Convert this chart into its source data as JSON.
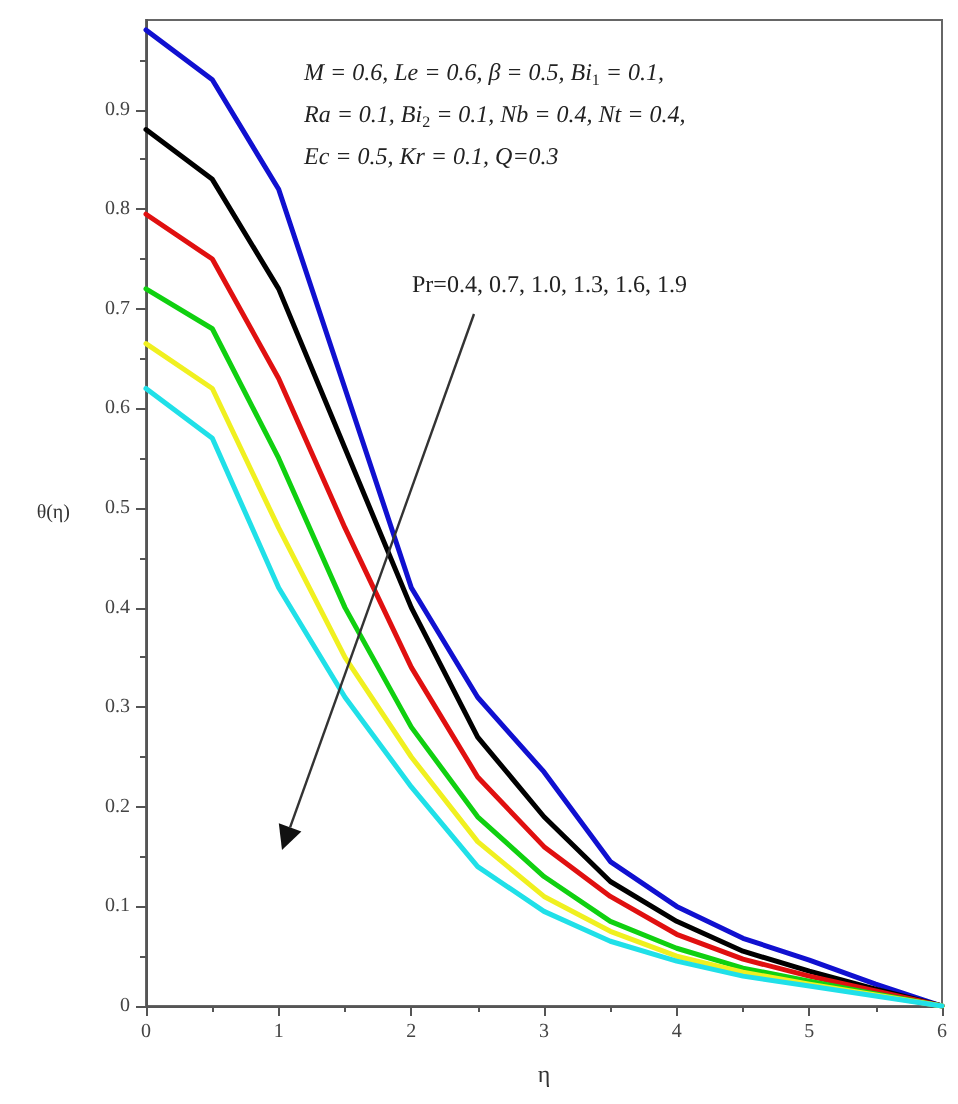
{
  "chart_data": {
    "type": "line",
    "xlabel": "η",
    "ylabel": "θ(η)",
    "x": [
      0,
      0.5,
      1,
      1.5,
      2,
      2.5,
      3,
      3.5,
      4,
      4.5,
      5,
      5.5,
      6
    ],
    "series": [
      {
        "color": "#1010d0",
        "values": [
          0.98,
          0.93,
          0.82,
          0.62,
          0.42,
          0.31,
          0.235,
          0.145,
          0.1,
          0.068,
          0.046,
          0.022,
          0
        ]
      },
      {
        "color": "#000000",
        "values": [
          0.88,
          0.83,
          0.72,
          0.56,
          0.4,
          0.27,
          0.19,
          0.125,
          0.085,
          0.055,
          0.035,
          0.017,
          0
        ]
      },
      {
        "color": "#e01010",
        "values": [
          0.795,
          0.75,
          0.63,
          0.48,
          0.34,
          0.23,
          0.16,
          0.11,
          0.072,
          0.047,
          0.03,
          0.015,
          0
        ]
      },
      {
        "color": "#10d010",
        "values": [
          0.72,
          0.68,
          0.55,
          0.4,
          0.28,
          0.19,
          0.13,
          0.085,
          0.058,
          0.038,
          0.025,
          0.012,
          0
        ]
      },
      {
        "color": "#f0f020",
        "values": [
          0.665,
          0.62,
          0.48,
          0.35,
          0.25,
          0.165,
          0.11,
          0.075,
          0.05,
          0.034,
          0.022,
          0.011,
          0
        ]
      },
      {
        "color": "#20e0e8",
        "values": [
          0.62,
          0.57,
          0.42,
          0.31,
          0.22,
          0.14,
          0.095,
          0.065,
          0.045,
          0.03,
          0.02,
          0.01,
          0
        ]
      }
    ],
    "xlim": [
      0,
      6
    ],
    "xticks": [
      0,
      1,
      2,
      3,
      4,
      5,
      6
    ],
    "ylim": [
      0,
      0.99
    ],
    "yticks": [
      0,
      0.1,
      0.2,
      0.3,
      0.4,
      0.5,
      0.6,
      0.7,
      0.8,
      0.9
    ],
    "grid": false,
    "marker": "none",
    "line_style": "solid",
    "annotations": [
      "M = 0.6, Le = 0.6, β = 0.5, Bi$_{1}$ = 0.1,",
      "Ra = 0.1, Bi$_{2}$ = 0.1, Nb = 0.4, Nt = 0.4,",
      "Ec = 0.5, Kr = 0.1, Q=0.3",
      "Pr=0.4, 0.7, 1.0, 1.3, 1.6, 1.9"
    ]
  }
}
